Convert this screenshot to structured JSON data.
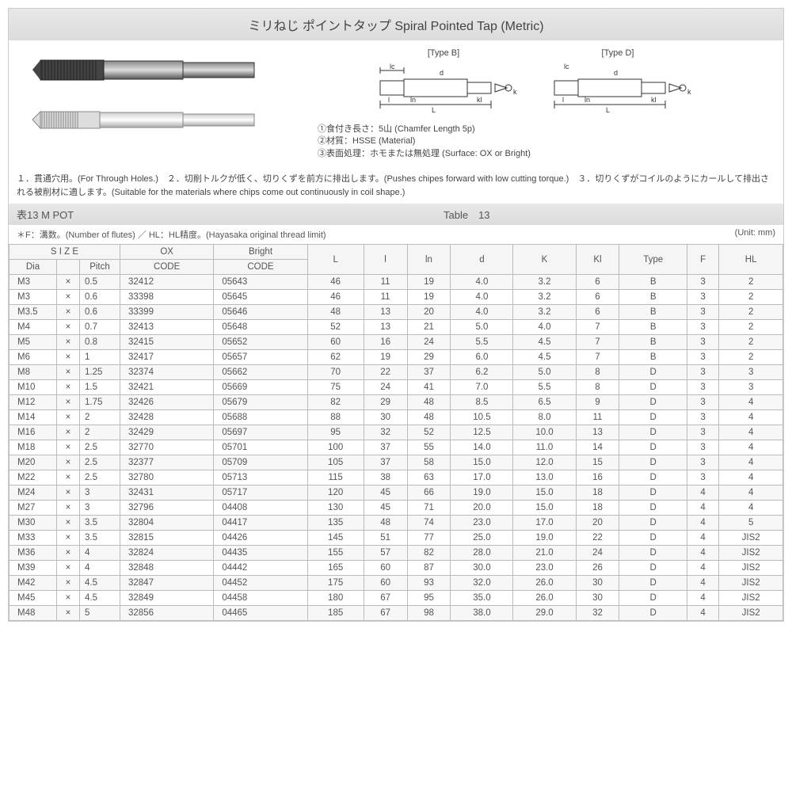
{
  "title": "ミリねじ ポイントタップ Spiral Pointed Tap (Metric)",
  "diagrams": {
    "typeB_label": "[Type B]",
    "typeD_label": "[Type D]"
  },
  "notes": {
    "n1": "①食付き長さ：5山 (Chamfer Length 5p)",
    "n2": "②材質：HSSE (Material)",
    "n3": "③表面処理：ホモまたは無処理 (Surface: OX or Bright)"
  },
  "desc1": "１．貫通穴用。(For Through Holes.)　２．切削トルクが低く、切りくずを前方に排出します。(Pushes chipes forward with low cutting torque.)　３．切りくずがコイルのようにカールして排出される被削材に適します。(Suitable for the materials where chips come out continuously in coil shape.)",
  "tableHeader": {
    "left": "表13 M POT",
    "right": "Table　13"
  },
  "legend": "＊F：溝数。(Number of flutes) ／ HL：HL精度。(Hayasaka original thread limit)",
  "unit": "(Unit: mm)",
  "columns": {
    "size": "S I Z E",
    "dia": "Dia",
    "pitch": "Pitch",
    "ox": "OX",
    "bright": "Bright",
    "code": "CODE",
    "L": "L",
    "l": "l",
    "ln": "ln",
    "d": "d",
    "K": "K",
    "Kl": "Kl",
    "Type": "Type",
    "F": "F",
    "HL": "HL"
  },
  "rows": [
    {
      "dia": "M3",
      "pitch": "0.5",
      "ox": "32412",
      "br": "05643",
      "L": "46",
      "l": "11",
      "ln": "19",
      "d": "4.0",
      "K": "3.2",
      "Kl": "6",
      "Type": "B",
      "F": "3",
      "HL": "2"
    },
    {
      "dia": "M3",
      "pitch": "0.6",
      "ox": "33398",
      "br": "05645",
      "L": "46",
      "l": "11",
      "ln": "19",
      "d": "4.0",
      "K": "3.2",
      "Kl": "6",
      "Type": "B",
      "F": "3",
      "HL": "2"
    },
    {
      "dia": "M3.5",
      "pitch": "0.6",
      "ox": "33399",
      "br": "05646",
      "L": "48",
      "l": "13",
      "ln": "20",
      "d": "4.0",
      "K": "3.2",
      "Kl": "6",
      "Type": "B",
      "F": "3",
      "HL": "2"
    },
    {
      "dia": "M4",
      "pitch": "0.7",
      "ox": "32413",
      "br": "05648",
      "L": "52",
      "l": "13",
      "ln": "21",
      "d": "5.0",
      "K": "4.0",
      "Kl": "7",
      "Type": "B",
      "F": "3",
      "HL": "2"
    },
    {
      "dia": "M5",
      "pitch": "0.8",
      "ox": "32415",
      "br": "05652",
      "L": "60",
      "l": "16",
      "ln": "24",
      "d": "5.5",
      "K": "4.5",
      "Kl": "7",
      "Type": "B",
      "F": "3",
      "HL": "2"
    },
    {
      "dia": "M6",
      "pitch": "1",
      "ox": "32417",
      "br": "05657",
      "L": "62",
      "l": "19",
      "ln": "29",
      "d": "6.0",
      "K": "4.5",
      "Kl": "7",
      "Type": "B",
      "F": "3",
      "HL": "2"
    },
    {
      "dia": "M8",
      "pitch": "1.25",
      "ox": "32374",
      "br": "05662",
      "L": "70",
      "l": "22",
      "ln": "37",
      "d": "6.2",
      "K": "5.0",
      "Kl": "8",
      "Type": "D",
      "F": "3",
      "HL": "3"
    },
    {
      "dia": "M10",
      "pitch": "1.5",
      "ox": "32421",
      "br": "05669",
      "L": "75",
      "l": "24",
      "ln": "41",
      "d": "7.0",
      "K": "5.5",
      "Kl": "8",
      "Type": "D",
      "F": "3",
      "HL": "3"
    },
    {
      "dia": "M12",
      "pitch": "1.75",
      "ox": "32426",
      "br": "05679",
      "L": "82",
      "l": "29",
      "ln": "48",
      "d": "8.5",
      "K": "6.5",
      "Kl": "9",
      "Type": "D",
      "F": "3",
      "HL": "4"
    },
    {
      "dia": "M14",
      "pitch": "2",
      "ox": "32428",
      "br": "05688",
      "L": "88",
      "l": "30",
      "ln": "48",
      "d": "10.5",
      "K": "8.0",
      "Kl": "11",
      "Type": "D",
      "F": "3",
      "HL": "4"
    },
    {
      "dia": "M16",
      "pitch": "2",
      "ox": "32429",
      "br": "05697",
      "L": "95",
      "l": "32",
      "ln": "52",
      "d": "12.5",
      "K": "10.0",
      "Kl": "13",
      "Type": "D",
      "F": "3",
      "HL": "4"
    },
    {
      "dia": "M18",
      "pitch": "2.5",
      "ox": "32770",
      "br": "05701",
      "L": "100",
      "l": "37",
      "ln": "55",
      "d": "14.0",
      "K": "11.0",
      "Kl": "14",
      "Type": "D",
      "F": "3",
      "HL": "4"
    },
    {
      "dia": "M20",
      "pitch": "2.5",
      "ox": "32377",
      "br": "05709",
      "L": "105",
      "l": "37",
      "ln": "58",
      "d": "15.0",
      "K": "12.0",
      "Kl": "15",
      "Type": "D",
      "F": "3",
      "HL": "4"
    },
    {
      "dia": "M22",
      "pitch": "2.5",
      "ox": "32780",
      "br": "05713",
      "L": "115",
      "l": "38",
      "ln": "63",
      "d": "17.0",
      "K": "13.0",
      "Kl": "16",
      "Type": "D",
      "F": "3",
      "HL": "4"
    },
    {
      "dia": "M24",
      "pitch": "3",
      "ox": "32431",
      "br": "05717",
      "L": "120",
      "l": "45",
      "ln": "66",
      "d": "19.0",
      "K": "15.0",
      "Kl": "18",
      "Type": "D",
      "F": "4",
      "HL": "4"
    },
    {
      "dia": "M27",
      "pitch": "3",
      "ox": "32796",
      "br": "04408",
      "L": "130",
      "l": "45",
      "ln": "71",
      "d": "20.0",
      "K": "15.0",
      "Kl": "18",
      "Type": "D",
      "F": "4",
      "HL": "4"
    },
    {
      "dia": "M30",
      "pitch": "3.5",
      "ox": "32804",
      "br": "04417",
      "L": "135",
      "l": "48",
      "ln": "74",
      "d": "23.0",
      "K": "17.0",
      "Kl": "20",
      "Type": "D",
      "F": "4",
      "HL": "5"
    },
    {
      "dia": "M33",
      "pitch": "3.5",
      "ox": "32815",
      "br": "04426",
      "L": "145",
      "l": "51",
      "ln": "77",
      "d": "25.0",
      "K": "19.0",
      "Kl": "22",
      "Type": "D",
      "F": "4",
      "HL": "JIS2"
    },
    {
      "dia": "M36",
      "pitch": "4",
      "ox": "32824",
      "br": "04435",
      "L": "155",
      "l": "57",
      "ln": "82",
      "d": "28.0",
      "K": "21.0",
      "Kl": "24",
      "Type": "D",
      "F": "4",
      "HL": "JIS2"
    },
    {
      "dia": "M39",
      "pitch": "4",
      "ox": "32848",
      "br": "04442",
      "L": "165",
      "l": "60",
      "ln": "87",
      "d": "30.0",
      "K": "23.0",
      "Kl": "26",
      "Type": "D",
      "F": "4",
      "HL": "JIS2"
    },
    {
      "dia": "M42",
      "pitch": "4.5",
      "ox": "32847",
      "br": "04452",
      "L": "175",
      "l": "60",
      "ln": "93",
      "d": "32.0",
      "K": "26.0",
      "Kl": "30",
      "Type": "D",
      "F": "4",
      "HL": "JIS2"
    },
    {
      "dia": "M45",
      "pitch": "4.5",
      "ox": "32849",
      "br": "04458",
      "L": "180",
      "l": "67",
      "ln": "95",
      "d": "35.0",
      "K": "26.0",
      "Kl": "30",
      "Type": "D",
      "F": "4",
      "HL": "JIS2"
    },
    {
      "dia": "M48",
      "pitch": "5",
      "ox": "32856",
      "br": "04465",
      "L": "185",
      "l": "67",
      "ln": "98",
      "d": "38.0",
      "K": "29.0",
      "Kl": "32",
      "Type": "D",
      "F": "4",
      "HL": "JIS2"
    }
  ],
  "style": {
    "header_bg": "#e2e2e2",
    "border": "#bbbbbb",
    "row_odd": "#f7f7f7",
    "row_even": "#ffffff",
    "text": "#555555",
    "title_fontsize": 16,
    "body_fontsize": 12,
    "table_fontsize": 11.5
  }
}
